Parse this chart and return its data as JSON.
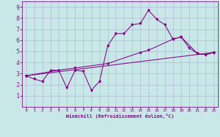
{
  "xlabel": "Windchill (Refroidissement éolien,°C)",
  "background_color": "#c8e8e8",
  "grid_color": "#b0b8d0",
  "line_color": "#880088",
  "xlim": [
    -0.5,
    23.5
  ],
  "ylim": [
    0,
    9.5
  ],
  "xticks": [
    0,
    1,
    2,
    3,
    4,
    5,
    6,
    7,
    8,
    9,
    10,
    11,
    12,
    13,
    14,
    15,
    16,
    17,
    18,
    19,
    20,
    21,
    22,
    23
  ],
  "yticks": [
    1,
    2,
    3,
    4,
    5,
    6,
    7,
    8,
    9
  ],
  "line1_x": [
    0,
    1,
    2,
    3,
    4,
    5,
    6,
    7,
    8,
    9,
    10,
    11,
    12,
    13,
    14,
    15,
    16,
    17,
    18,
    19,
    20,
    21,
    22,
    23
  ],
  "line1_y": [
    2.8,
    2.5,
    2.3,
    3.3,
    3.3,
    1.7,
    3.3,
    3.2,
    1.5,
    2.3,
    5.5,
    6.6,
    6.6,
    7.4,
    7.5,
    8.7,
    7.9,
    7.4,
    6.1,
    6.3,
    5.3,
    4.8,
    4.7,
    4.9
  ],
  "line2_x": [
    0,
    4,
    6,
    10,
    14,
    15,
    18,
    19,
    21,
    22,
    23
  ],
  "line2_y": [
    2.8,
    3.3,
    3.5,
    3.9,
    4.9,
    5.1,
    6.1,
    6.3,
    4.8,
    4.7,
    4.9
  ],
  "line3_x": [
    0,
    23
  ],
  "line3_y": [
    2.8,
    4.9
  ]
}
